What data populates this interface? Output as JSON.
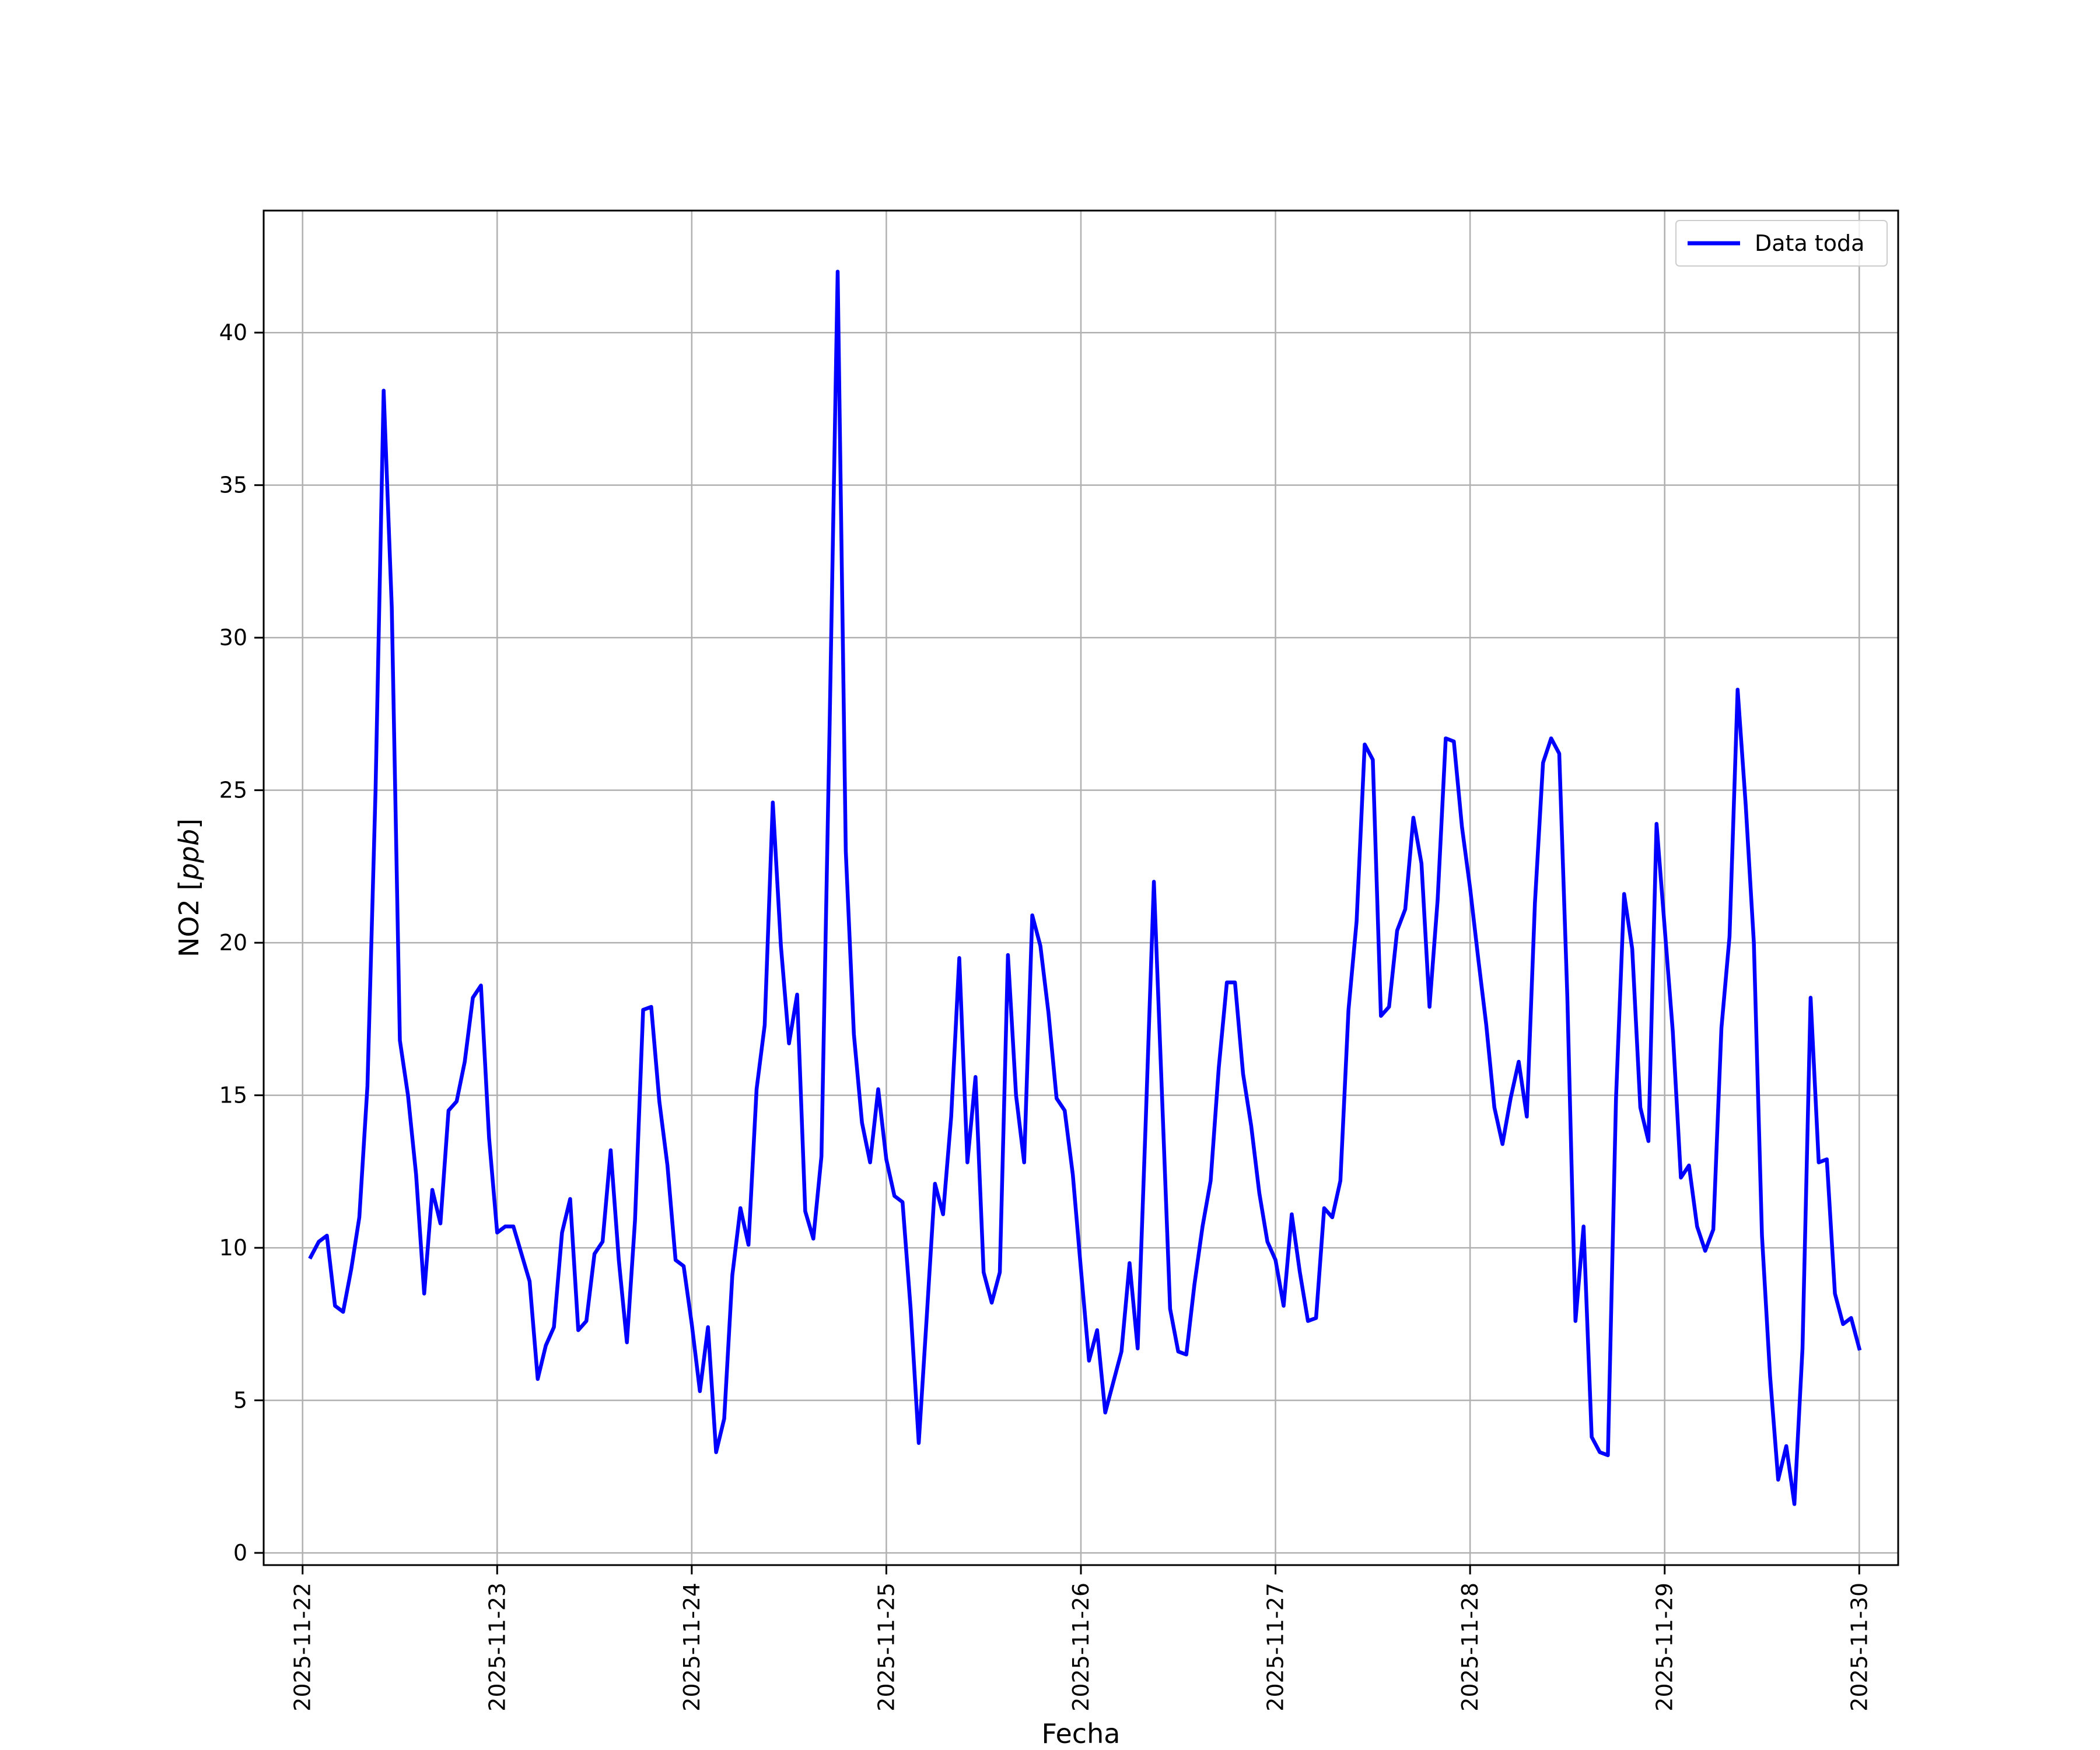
{
  "chart_data": {
    "type": "line",
    "xlabel": "Fecha",
    "ylabel": "NO2 [ppb]",
    "ylabel_parts": {
      "prefix": "NO2 [",
      "unit": "ppb",
      "suffix": "]"
    },
    "x_range": [
      "2025-11-21T19:12",
      "2025-11-30T04:48"
    ],
    "ylim": [
      -0.4,
      44.0
    ],
    "grid": true,
    "legend_position": "top-right",
    "x_ticks": [
      "2025-11-22",
      "2025-11-23",
      "2025-11-24",
      "2025-11-25",
      "2025-11-26",
      "2025-11-27",
      "2025-11-28",
      "2025-11-29",
      "2025-11-30"
    ],
    "y_ticks": [
      0,
      5,
      10,
      15,
      20,
      25,
      30,
      35,
      40
    ],
    "colors": {
      "series": "#0000ff",
      "grid": "#b0b0b0",
      "axes": "#000000"
    },
    "series": [
      {
        "name": "Data toda",
        "x": [
          "2025-11-22T01:00",
          "2025-11-22T02:00",
          "2025-11-22T03:00",
          "2025-11-22T04:00",
          "2025-11-22T05:00",
          "2025-11-22T06:00",
          "2025-11-22T07:00",
          "2025-11-22T08:00",
          "2025-11-22T09:00",
          "2025-11-22T10:00",
          "2025-11-22T11:00",
          "2025-11-22T12:00",
          "2025-11-22T13:00",
          "2025-11-22T14:00",
          "2025-11-22T15:00",
          "2025-11-22T16:00",
          "2025-11-22T17:00",
          "2025-11-22T18:00",
          "2025-11-22T19:00",
          "2025-11-22T20:00",
          "2025-11-22T21:00",
          "2025-11-22T22:00",
          "2025-11-22T23:00",
          "2025-11-23T00:00",
          "2025-11-23T01:00",
          "2025-11-23T02:00",
          "2025-11-23T03:00",
          "2025-11-23T04:00",
          "2025-11-23T05:00",
          "2025-11-23T06:00",
          "2025-11-23T07:00",
          "2025-11-23T08:00",
          "2025-11-23T09:00",
          "2025-11-23T10:00",
          "2025-11-23T11:00",
          "2025-11-23T12:00",
          "2025-11-23T13:00",
          "2025-11-23T14:00",
          "2025-11-23T15:00",
          "2025-11-23T16:00",
          "2025-11-23T17:00",
          "2025-11-23T18:00",
          "2025-11-23T19:00",
          "2025-11-23T20:00",
          "2025-11-23T21:00",
          "2025-11-23T22:00",
          "2025-11-23T23:00",
          "2025-11-24T00:00",
          "2025-11-24T01:00",
          "2025-11-24T02:00",
          "2025-11-24T03:00",
          "2025-11-24T04:00",
          "2025-11-24T05:00",
          "2025-11-24T06:00",
          "2025-11-24T07:00",
          "2025-11-24T08:00",
          "2025-11-24T09:00",
          "2025-11-24T10:00",
          "2025-11-24T11:00",
          "2025-11-24T12:00",
          "2025-11-24T13:00",
          "2025-11-24T14:00",
          "2025-11-24T15:00",
          "2025-11-24T16:00",
          "2025-11-24T17:00",
          "2025-11-24T18:00",
          "2025-11-24T19:00",
          "2025-11-24T20:00",
          "2025-11-24T21:00",
          "2025-11-24T22:00",
          "2025-11-24T23:00",
          "2025-11-25T00:00",
          "2025-11-25T01:00",
          "2025-11-25T02:00",
          "2025-11-25T03:00",
          "2025-11-25T04:00",
          "2025-11-25T05:00",
          "2025-11-25T06:00",
          "2025-11-25T07:00",
          "2025-11-25T08:00",
          "2025-11-25T09:00",
          "2025-11-25T10:00",
          "2025-11-25T11:00",
          "2025-11-25T12:00",
          "2025-11-25T13:00",
          "2025-11-25T14:00",
          "2025-11-25T15:00",
          "2025-11-25T16:00",
          "2025-11-25T17:00",
          "2025-11-25T18:00",
          "2025-11-25T19:00",
          "2025-11-25T20:00",
          "2025-11-25T21:00",
          "2025-11-25T22:00",
          "2025-11-25T23:00",
          "2025-11-26T00:00",
          "2025-11-26T01:00",
          "2025-11-26T02:00",
          "2025-11-26T03:00",
          "2025-11-26T04:00",
          "2025-11-26T05:00",
          "2025-11-26T06:00",
          "2025-11-26T07:00",
          "2025-11-26T08:00",
          "2025-11-26T09:00",
          "2025-11-26T10:00",
          "2025-11-26T11:00",
          "2025-11-26T12:00",
          "2025-11-26T13:00",
          "2025-11-26T14:00",
          "2025-11-26T15:00",
          "2025-11-26T16:00",
          "2025-11-26T17:00",
          "2025-11-26T18:00",
          "2025-11-26T19:00",
          "2025-11-26T20:00",
          "2025-11-26T21:00",
          "2025-11-26T22:00",
          "2025-11-26T23:00",
          "2025-11-27T00:00",
          "2025-11-27T01:00",
          "2025-11-27T02:00",
          "2025-11-27T03:00",
          "2025-11-27T04:00",
          "2025-11-27T05:00",
          "2025-11-27T06:00",
          "2025-11-27T07:00",
          "2025-11-27T08:00",
          "2025-11-27T09:00",
          "2025-11-27T10:00",
          "2025-11-27T11:00",
          "2025-11-27T12:00",
          "2025-11-27T13:00",
          "2025-11-27T14:00",
          "2025-11-27T15:00",
          "2025-11-27T16:00",
          "2025-11-27T17:00",
          "2025-11-27T18:00",
          "2025-11-27T19:00",
          "2025-11-27T20:00",
          "2025-11-27T21:00",
          "2025-11-27T22:00",
          "2025-11-27T23:00",
          "2025-11-28T00:00",
          "2025-11-28T01:00",
          "2025-11-28T02:00",
          "2025-11-28T03:00",
          "2025-11-28T04:00",
          "2025-11-28T05:00",
          "2025-11-28T06:00",
          "2025-11-28T07:00",
          "2025-11-28T08:00",
          "2025-11-28T09:00",
          "2025-11-28T10:00",
          "2025-11-28T11:00",
          "2025-11-28T12:00",
          "2025-11-28T13:00",
          "2025-11-28T14:00",
          "2025-11-28T15:00",
          "2025-11-28T16:00",
          "2025-11-28T17:00",
          "2025-11-28T18:00",
          "2025-11-28T19:00",
          "2025-11-28T20:00",
          "2025-11-28T21:00",
          "2025-11-28T22:00",
          "2025-11-28T23:00",
          "2025-11-29T00:00",
          "2025-11-29T01:00",
          "2025-11-29T02:00",
          "2025-11-29T03:00",
          "2025-11-29T04:00",
          "2025-11-29T05:00",
          "2025-11-29T06:00",
          "2025-11-29T07:00",
          "2025-11-29T08:00",
          "2025-11-29T09:00",
          "2025-11-29T10:00",
          "2025-11-29T11:00",
          "2025-11-29T12:00",
          "2025-11-29T13:00",
          "2025-11-29T14:00",
          "2025-11-29T15:00",
          "2025-11-29T16:00",
          "2025-11-29T17:00",
          "2025-11-29T18:00",
          "2025-11-29T19:00",
          "2025-11-29T20:00",
          "2025-11-29T21:00",
          "2025-11-29T22:00",
          "2025-11-29T23:00",
          "2025-11-30T00:00"
        ],
        "values": [
          9.7,
          10.2,
          10.4,
          8.1,
          7.9,
          9.3,
          11.0,
          15.3,
          25.0,
          38.1,
          31.0,
          16.8,
          15.0,
          12.4,
          8.5,
          11.9,
          10.8,
          14.5,
          14.8,
          16.1,
          18.2,
          18.6,
          13.6,
          10.5,
          10.7,
          10.7,
          9.8,
          8.9,
          5.7,
          6.8,
          7.4,
          10.5,
          11.6,
          7.3,
          7.6,
          9.8,
          10.2,
          13.2,
          9.6,
          6.9,
          10.9,
          17.8,
          17.9,
          14.8,
          12.7,
          9.6,
          9.4,
          7.5,
          5.3,
          7.4,
          3.3,
          4.4,
          9.1,
          11.3,
          10.1,
          15.2,
          17.3,
          24.6,
          19.9,
          16.7,
          18.3,
          11.2,
          10.3,
          13.0,
          27.0,
          42.0,
          23.0,
          17.0,
          14.1,
          12.8,
          15.2,
          12.9,
          11.7,
          11.5,
          8.0,
          3.6,
          7.8,
          12.1,
          11.1,
          14.3,
          19.5,
          12.8,
          15.6,
          9.2,
          8.2,
          9.2,
          19.6,
          15.0,
          12.8,
          20.9,
          19.9,
          17.7,
          14.9,
          14.5,
          12.4,
          9.3,
          6.3,
          7.3,
          4.6,
          5.6,
          6.6,
          9.5,
          6.7,
          14.2,
          22.0,
          15.0,
          8.0,
          6.6,
          6.5,
          8.8,
          10.7,
          12.2,
          15.9,
          18.7,
          18.7,
          15.7,
          14.0,
          11.8,
          10.2,
          9.6,
          8.1,
          11.1,
          9.2,
          7.6,
          7.7,
          11.3,
          11.0,
          12.2,
          17.8,
          20.7,
          26.5,
          26.0,
          17.6,
          17.9,
          20.4,
          21.1,
          24.1,
          22.6,
          17.9,
          21.4,
          26.7,
          26.6,
          23.8,
          21.8,
          19.5,
          17.3,
          14.6,
          13.4,
          14.9,
          16.1,
          14.3,
          21.3,
          25.9,
          26.7,
          26.2,
          18.2,
          7.6,
          10.7,
          3.8,
          3.3,
          3.2,
          14.9,
          21.6,
          19.8,
          14.6,
          13.5,
          23.9,
          20.5,
          17.1,
          12.3,
          12.7,
          10.7,
          9.9,
          10.6,
          17.2,
          20.2,
          28.3,
          24.5,
          20.0,
          10.4,
          5.8,
          2.4,
          3.5,
          1.6,
          6.7,
          18.2,
          12.8,
          12.9,
          8.5,
          7.5,
          7.7,
          6.7
        ]
      }
    ]
  }
}
